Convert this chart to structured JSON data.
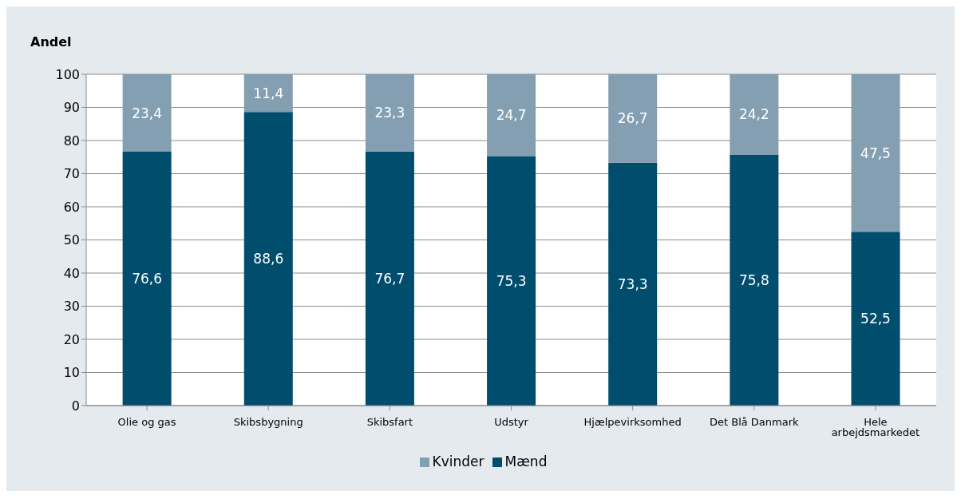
{
  "chart_data": {
    "type": "bar",
    "stacked": true,
    "ylabel": "Andel",
    "categories": [
      "Olie og gas",
      "Skibsbygning",
      "Skibsfart",
      "Udstyr",
      "Hjælpevirksomhed",
      "Det Blå Danmark",
      "Hele arbejdsmarkedet"
    ],
    "series": [
      {
        "name": "Mænd",
        "color": "#004d6e",
        "values": [
          76.6,
          88.6,
          76.7,
          75.3,
          73.3,
          75.8,
          52.5
        ],
        "value_labels": [
          "76,6",
          "88,6",
          "76,7",
          "75,3",
          "73,3",
          "75,8",
          "52,5"
        ]
      },
      {
        "name": "Kvinder",
        "color": "#849fb2",
        "values": [
          23.4,
          11.4,
          23.3,
          24.7,
          26.7,
          24.2,
          47.5
        ],
        "value_labels": [
          "23,4",
          "11,4",
          "23,3",
          "24,7",
          "26,7",
          "24,2",
          "47,5"
        ]
      }
    ],
    "ylim": [
      0,
      100
    ],
    "yticks": [
      0,
      10,
      20,
      30,
      40,
      50,
      60,
      70,
      80,
      90,
      100
    ],
    "grid": "y",
    "legend": "bottom"
  }
}
